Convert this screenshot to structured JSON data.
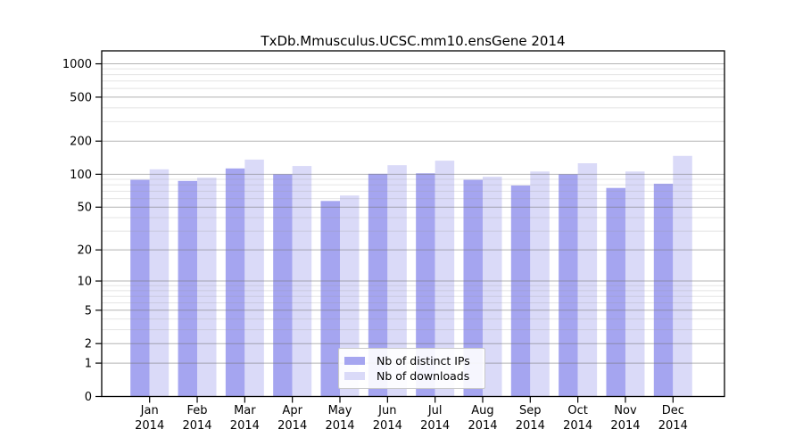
{
  "title": "TxDb.Mmusculus.UCSC.mm10.ensGene 2014",
  "chart_data": {
    "type": "bar",
    "title": "TxDb.Mmusculus.UCSC.mm10.ensGene 2014",
    "xlabel": "",
    "ylabel": "",
    "yscale": "log10(1+x)",
    "ylim": [
      0,
      1310
    ],
    "grid": true,
    "legend_position": "bottom-center",
    "categories": [
      {
        "month": "Jan",
        "year": "2014"
      },
      {
        "month": "Feb",
        "year": "2014"
      },
      {
        "month": "Mar",
        "year": "2014"
      },
      {
        "month": "Apr",
        "year": "2014"
      },
      {
        "month": "May",
        "year": "2014"
      },
      {
        "month": "Jun",
        "year": "2014"
      },
      {
        "month": "Jul",
        "year": "2014"
      },
      {
        "month": "Aug",
        "year": "2014"
      },
      {
        "month": "Sep",
        "year": "2014"
      },
      {
        "month": "Oct",
        "year": "2014"
      },
      {
        "month": "Nov",
        "year": "2014"
      },
      {
        "month": "Dec",
        "year": "2014"
      }
    ],
    "series": [
      {
        "name": "Nb of distinct IPs",
        "color": "#a5a5f0",
        "values": [
          89,
          87,
          113,
          100,
          57,
          101,
          102,
          89,
          79,
          100,
          75,
          82
        ]
      },
      {
        "name": "Nb of downloads",
        "color": "#dadaf8",
        "values": [
          111,
          93,
          136,
          119,
          64,
          121,
          133,
          95,
          106,
          126,
          106,
          147
        ]
      }
    ],
    "yticks": [
      0,
      1,
      2,
      5,
      10,
      20,
      50,
      100,
      200,
      500,
      1000
    ],
    "minor_tick_mantissas": [
      3,
      4,
      6,
      7,
      8,
      9
    ],
    "minor_tick_decades": [
      1,
      10,
      100
    ],
    "colors": {
      "frame": "#000000",
      "major_grid": "#b3b3b3",
      "minor_grid": "#e3e3e3",
      "tick_text": "#000000"
    }
  }
}
